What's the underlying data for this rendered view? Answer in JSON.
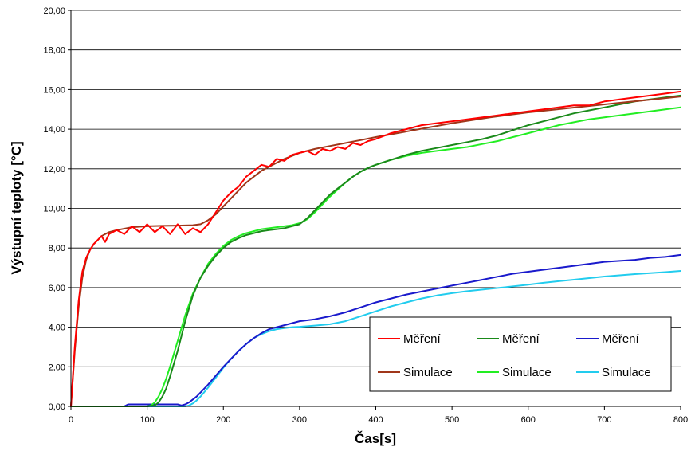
{
  "chart_data": {
    "type": "line",
    "title": "",
    "xlabel": "Čas[s]",
    "ylabel": "Výstupní teploty [°C]",
    "xlim": [
      0,
      800
    ],
    "ylim": [
      0,
      20
    ],
    "x_ticks": [
      "0",
      "100",
      "200",
      "300",
      "400",
      "500",
      "600",
      "700",
      "800"
    ],
    "y_ticks": [
      "0,00",
      "2,00",
      "4,00",
      "6,00",
      "8,00",
      "10,00",
      "12,00",
      "14,00",
      "16,00",
      "18,00",
      "20,00"
    ],
    "grid": "horizontal",
    "legend_position": "bottom-right",
    "series": [
      {
        "name": "Měření",
        "color": "#ff0000",
        "x": [
          0,
          5,
          10,
          15,
          20,
          25,
          30,
          35,
          40,
          45,
          50,
          60,
          70,
          80,
          90,
          100,
          110,
          120,
          130,
          140,
          150,
          160,
          170,
          180,
          190,
          200,
          210,
          220,
          230,
          240,
          250,
          260,
          270,
          280,
          290,
          300,
          310,
          320,
          330,
          340,
          350,
          360,
          370,
          380,
          390,
          400,
          420,
          440,
          460,
          480,
          500,
          520,
          540,
          560,
          580,
          600,
          620,
          640,
          660,
          680,
          700,
          720,
          740,
          760,
          780,
          800
        ],
        "y": [
          0.0,
          3.0,
          5.3,
          6.8,
          7.5,
          7.9,
          8.2,
          8.4,
          8.6,
          8.3,
          8.7,
          8.9,
          8.7,
          9.1,
          8.8,
          9.2,
          8.8,
          9.1,
          8.7,
          9.2,
          8.7,
          9.0,
          8.8,
          9.2,
          9.8,
          10.4,
          10.8,
          11.1,
          11.6,
          11.9,
          12.2,
          12.1,
          12.5,
          12.4,
          12.7,
          12.8,
          12.9,
          12.7,
          13.0,
          12.9,
          13.1,
          13.0,
          13.3,
          13.2,
          13.4,
          13.5,
          13.8,
          14.0,
          14.2,
          14.3,
          14.4,
          14.5,
          14.6,
          14.7,
          14.8,
          14.9,
          15.0,
          15.1,
          15.2,
          15.2,
          15.4,
          15.5,
          15.6,
          15.7,
          15.8,
          15.9
        ]
      },
      {
        "name": "Simulace",
        "color": "#a0361a",
        "x": [
          0,
          5,
          10,
          15,
          20,
          25,
          30,
          35,
          40,
          50,
          60,
          80,
          100,
          120,
          140,
          160,
          170,
          180,
          190,
          200,
          210,
          220,
          230,
          240,
          250,
          260,
          270,
          280,
          300,
          320,
          340,
          360,
          380,
          400,
          450,
          500,
          550,
          600,
          650,
          700,
          750,
          800
        ],
        "y": [
          0.0,
          2.8,
          5.0,
          6.5,
          7.4,
          7.9,
          8.2,
          8.4,
          8.6,
          8.8,
          8.9,
          9.05,
          9.1,
          9.12,
          9.13,
          9.15,
          9.2,
          9.4,
          9.7,
          10.1,
          10.5,
          10.9,
          11.3,
          11.6,
          11.9,
          12.1,
          12.3,
          12.5,
          12.8,
          13.0,
          13.15,
          13.3,
          13.45,
          13.6,
          13.95,
          14.3,
          14.6,
          14.85,
          15.05,
          15.25,
          15.45,
          15.65
        ]
      },
      {
        "name": "Měření",
        "color": "#1a8a1a",
        "x": [
          0,
          100,
          110,
          115,
          120,
          125,
          130,
          140,
          150,
          160,
          170,
          180,
          190,
          200,
          210,
          220,
          230,
          240,
          250,
          260,
          270,
          280,
          290,
          300,
          310,
          320,
          330,
          340,
          350,
          360,
          370,
          380,
          390,
          400,
          420,
          440,
          460,
          480,
          500,
          520,
          540,
          560,
          580,
          600,
          620,
          640,
          660,
          680,
          700,
          720,
          740,
          760,
          780,
          800
        ],
        "y": [
          0.0,
          0.0,
          0.05,
          0.2,
          0.5,
          0.9,
          1.5,
          2.8,
          4.3,
          5.6,
          6.5,
          7.1,
          7.6,
          8.0,
          8.3,
          8.5,
          8.65,
          8.75,
          8.85,
          8.9,
          8.95,
          9.0,
          9.1,
          9.2,
          9.5,
          9.9,
          10.3,
          10.7,
          11.0,
          11.3,
          11.6,
          11.85,
          12.05,
          12.2,
          12.45,
          12.7,
          12.9,
          13.05,
          13.2,
          13.35,
          13.5,
          13.7,
          13.95,
          14.2,
          14.4,
          14.6,
          14.8,
          14.95,
          15.1,
          15.25,
          15.4,
          15.5,
          15.6,
          15.7
        ]
      },
      {
        "name": "Simulace",
        "color": "#22ee22",
        "x": [
          0,
          100,
          105,
          110,
          115,
          120,
          125,
          130,
          140,
          150,
          160,
          170,
          180,
          190,
          200,
          210,
          220,
          230,
          240,
          250,
          260,
          270,
          280,
          290,
          300,
          310,
          320,
          330,
          340,
          350,
          360,
          370,
          380,
          390,
          400,
          420,
          440,
          460,
          480,
          500,
          520,
          540,
          560,
          580,
          600,
          620,
          640,
          660,
          680,
          700,
          720,
          740,
          760,
          780,
          800
        ],
        "y": [
          0.0,
          0.0,
          0.05,
          0.2,
          0.5,
          0.9,
          1.4,
          2.0,
          3.3,
          4.6,
          5.7,
          6.5,
          7.2,
          7.7,
          8.1,
          8.4,
          8.6,
          8.75,
          8.85,
          8.95,
          9.0,
          9.05,
          9.1,
          9.15,
          9.25,
          9.45,
          9.8,
          10.2,
          10.6,
          10.95,
          11.3,
          11.6,
          11.85,
          12.05,
          12.2,
          12.45,
          12.65,
          12.8,
          12.9,
          13.0,
          13.1,
          13.25,
          13.4,
          13.6,
          13.8,
          14.0,
          14.2,
          14.35,
          14.5,
          14.6,
          14.7,
          14.8,
          14.9,
          15.0,
          15.1
        ]
      },
      {
        "name": "Měření",
        "color": "#1a1acc",
        "x": [
          0,
          70,
          75,
          140,
          145,
          150,
          155,
          160,
          165,
          170,
          180,
          190,
          200,
          210,
          220,
          230,
          240,
          250,
          260,
          270,
          280,
          290,
          300,
          320,
          340,
          360,
          380,
          400,
          420,
          440,
          460,
          480,
          500,
          520,
          540,
          560,
          580,
          600,
          620,
          640,
          660,
          680,
          700,
          720,
          740,
          760,
          780,
          800
        ],
        "y": [
          0.0,
          0.0,
          0.1,
          0.1,
          0.05,
          0.1,
          0.2,
          0.35,
          0.5,
          0.7,
          1.1,
          1.55,
          2.0,
          2.4,
          2.8,
          3.15,
          3.45,
          3.7,
          3.9,
          4.0,
          4.1,
          4.2,
          4.3,
          4.4,
          4.55,
          4.75,
          5.0,
          5.25,
          5.45,
          5.65,
          5.8,
          5.95,
          6.1,
          6.25,
          6.4,
          6.55,
          6.7,
          6.8,
          6.9,
          7.0,
          7.1,
          7.2,
          7.3,
          7.35,
          7.4,
          7.5,
          7.55,
          7.65
        ]
      },
      {
        "name": "Simulace",
        "color": "#22ccee",
        "x": [
          0,
          150,
          155,
          160,
          165,
          170,
          180,
          190,
          200,
          210,
          220,
          230,
          240,
          250,
          260,
          270,
          280,
          290,
          300,
          320,
          340,
          360,
          380,
          400,
          420,
          440,
          460,
          480,
          500,
          520,
          540,
          560,
          580,
          600,
          620,
          640,
          660,
          680,
          700,
          720,
          740,
          760,
          780,
          800
        ],
        "y": [
          0.0,
          0.0,
          0.05,
          0.15,
          0.3,
          0.5,
          0.95,
          1.45,
          1.95,
          2.4,
          2.8,
          3.15,
          3.45,
          3.65,
          3.8,
          3.9,
          3.95,
          4.0,
          4.02,
          4.08,
          4.15,
          4.3,
          4.55,
          4.8,
          5.05,
          5.25,
          5.45,
          5.6,
          5.72,
          5.82,
          5.9,
          5.98,
          6.06,
          6.15,
          6.24,
          6.32,
          6.4,
          6.48,
          6.56,
          6.62,
          6.68,
          6.73,
          6.78,
          6.84
        ]
      }
    ],
    "legend": [
      {
        "label": "Měření",
        "color": "#ff0000"
      },
      {
        "label": "Měření",
        "color": "#1a8a1a"
      },
      {
        "label": "Měření",
        "color": "#1a1acc"
      },
      {
        "label": "Simulace",
        "color": "#a0361a"
      },
      {
        "label": "Simulace",
        "color": "#22ee22"
      },
      {
        "label": "Simulace",
        "color": "#22ccee"
      }
    ]
  }
}
